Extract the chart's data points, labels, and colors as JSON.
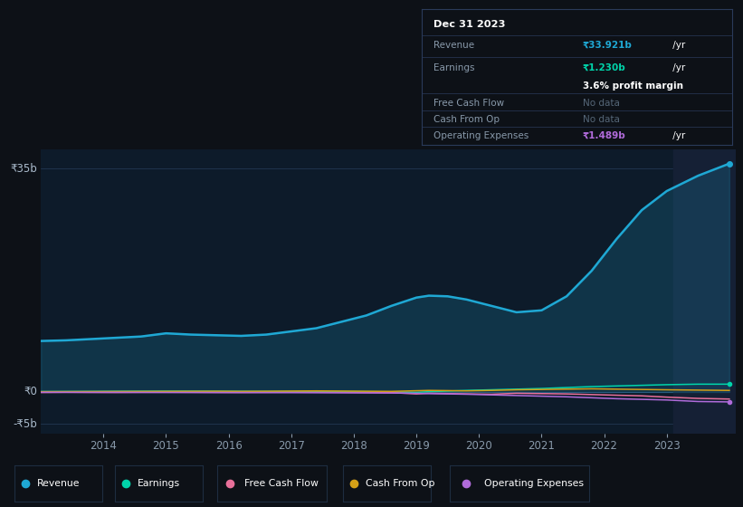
{
  "background_color": "#0d1117",
  "chart_bg_color": "#0d1b2a",
  "grid_color": "#263d5a",
  "years": [
    2013.0,
    2013.4,
    2013.8,
    2014.2,
    2014.6,
    2015.0,
    2015.4,
    2015.8,
    2016.2,
    2016.6,
    2017.0,
    2017.4,
    2017.8,
    2018.2,
    2018.6,
    2019.0,
    2019.2,
    2019.5,
    2019.8,
    2020.2,
    2020.6,
    2021.0,
    2021.4,
    2021.8,
    2022.2,
    2022.6,
    2023.0,
    2023.5,
    2024.0
  ],
  "revenue": [
    8.0,
    8.1,
    8.3,
    8.5,
    8.7,
    9.2,
    9.0,
    8.9,
    8.8,
    9.0,
    9.5,
    10.0,
    11.0,
    12.0,
    13.5,
    14.8,
    15.1,
    15.0,
    14.5,
    13.5,
    12.5,
    12.8,
    15.0,
    19.0,
    24.0,
    28.5,
    31.5,
    33.9,
    35.8
  ],
  "earnings": [
    0.08,
    0.09,
    0.1,
    0.12,
    0.13,
    0.14,
    0.14,
    0.13,
    0.11,
    0.1,
    0.1,
    0.1,
    0.08,
    0.06,
    0.02,
    -0.05,
    0.05,
    0.15,
    0.25,
    0.35,
    0.45,
    0.55,
    0.7,
    0.85,
    0.95,
    1.05,
    1.15,
    1.23,
    1.23
  ],
  "free_cash_flow": [
    -0.08,
    -0.06,
    -0.07,
    -0.08,
    -0.06,
    -0.05,
    -0.06,
    -0.07,
    -0.08,
    -0.06,
    -0.04,
    -0.05,
    -0.07,
    -0.08,
    -0.1,
    -0.3,
    -0.2,
    -0.25,
    -0.3,
    -0.35,
    -0.2,
    -0.25,
    -0.3,
    -0.4,
    -0.5,
    -0.6,
    -0.8,
    -1.0,
    -1.1
  ],
  "cash_from_op": [
    0.05,
    0.06,
    0.07,
    0.08,
    0.09,
    0.1,
    0.11,
    0.12,
    0.1,
    0.12,
    0.15,
    0.18,
    0.15,
    0.12,
    0.1,
    0.2,
    0.25,
    0.22,
    0.18,
    0.25,
    0.35,
    0.4,
    0.45,
    0.5,
    0.45,
    0.4,
    0.35,
    0.3,
    0.25
  ],
  "operating_expenses": [
    -0.04,
    -0.04,
    -0.05,
    -0.05,
    -0.06,
    -0.07,
    -0.07,
    -0.08,
    -0.08,
    -0.09,
    -0.1,
    -0.11,
    -0.12,
    -0.14,
    -0.16,
    -0.2,
    -0.25,
    -0.3,
    -0.35,
    -0.45,
    -0.55,
    -0.65,
    -0.75,
    -0.9,
    -1.05,
    -1.15,
    -1.25,
    -1.489,
    -1.55
  ],
  "ylim": [
    -6.5,
    38
  ],
  "yticks": [
    -5,
    0,
    35
  ],
  "ytick_labels": [
    "-₹5b",
    "₹0",
    "₹35b"
  ],
  "xtick_years": [
    2014,
    2015,
    2016,
    2017,
    2018,
    2019,
    2020,
    2021,
    2022,
    2023
  ],
  "revenue_color": "#1fa8d4",
  "earnings_color": "#00d4aa",
  "free_cash_flow_color": "#e8709a",
  "cash_from_op_color": "#d4a017",
  "operating_expenses_color": "#b06bda",
  "highlight_start": 2023.1,
  "highlight_color": "#152035",
  "tooltip": {
    "date": "Dec 31 2023",
    "revenue_label": "Revenue",
    "revenue_val": "₹33.921b",
    "revenue_per": " /yr",
    "earnings_label": "Earnings",
    "earnings_val": "₹1.230b",
    "earnings_per": " /yr",
    "profit_margin": "3.6% profit margin",
    "fcf_label": "Free Cash Flow",
    "fcf_val": "No data",
    "cfo_label": "Cash From Op",
    "cfo_val": "No data",
    "opex_label": "Operating Expenses",
    "opex_val": "₹1.489b",
    "opex_per": " /yr",
    "bg_color": "#0d1117",
    "border_color": "#2a3a5a",
    "label_color": "#8899aa",
    "nodata_color": "#556677",
    "value_color_revenue": "#1fa8d4",
    "value_color_earnings": "#00d4aa",
    "value_color_operating": "#b06bda"
  },
  "legend": {
    "items": [
      "Revenue",
      "Earnings",
      "Free Cash Flow",
      "Cash From Op",
      "Operating Expenses"
    ],
    "colors": [
      "#1fa8d4",
      "#00d4aa",
      "#e8709a",
      "#d4a017",
      "#b06bda"
    ],
    "bg_color": "#0d1117",
    "border_color": "#1e2d40"
  }
}
